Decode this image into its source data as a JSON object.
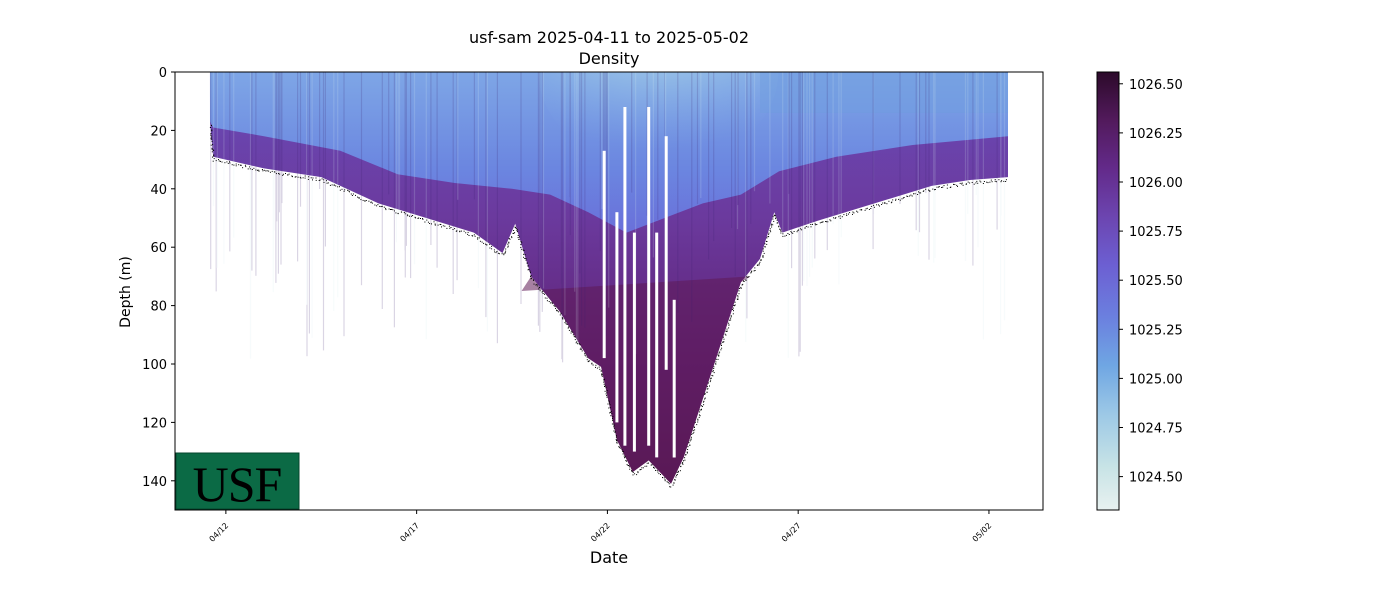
{
  "chart_data": {
    "type": "heatmap",
    "title": "usf-sam 2025-04-11 to 2025-05-02",
    "subtitle": "Density",
    "xlabel": "Date",
    "ylabel": "Depth (m)",
    "x_range": [
      "2025-04-10T16:00",
      "2025-05-03T10:00"
    ],
    "ylim": [
      150,
      0
    ],
    "x_ticks": [
      {
        "date": "2025-04-12",
        "label": "04/12"
      },
      {
        "date": "2025-04-17",
        "label": "04/17"
      },
      {
        "date": "2025-04-22",
        "label": "04/22"
      },
      {
        "date": "2025-04-27",
        "label": "04/27"
      },
      {
        "date": "2025-05-02",
        "label": "05/02"
      }
    ],
    "y_ticks": [
      0,
      20,
      40,
      60,
      80,
      100,
      120,
      140
    ],
    "colorbar": {
      "range": [
        1024.33,
        1026.56
      ],
      "ticks": [
        "1024.50",
        "1024.75",
        "1025.00",
        "1025.25",
        "1025.50",
        "1025.75",
        "1026.00",
        "1026.25",
        "1026.50"
      ]
    },
    "profile_depth": [
      {
        "date": "2025-04-11T14:00",
        "depth": 17
      },
      {
        "date": "2025-04-11T16:00",
        "depth": 29
      },
      {
        "date": "2025-04-13T00:00",
        "depth": 33
      },
      {
        "date": "2025-04-14T12:00",
        "depth": 36
      },
      {
        "date": "2025-04-16T00:00",
        "depth": 45
      },
      {
        "date": "2025-04-17T12:00",
        "depth": 51
      },
      {
        "date": "2025-04-18T12:00",
        "depth": 55
      },
      {
        "date": "2025-04-19T06:00",
        "depth": 62
      },
      {
        "date": "2025-04-19T14:00",
        "depth": 52
      },
      {
        "date": "2025-04-20T00:00",
        "depth": 70
      },
      {
        "date": "2025-04-20T18:00",
        "depth": 82
      },
      {
        "date": "2025-04-21T12:00",
        "depth": 98
      },
      {
        "date": "2025-04-21T20:00",
        "depth": 101
      },
      {
        "date": "2025-04-22T06:00",
        "depth": 126
      },
      {
        "date": "2025-04-22T16:00",
        "depth": 137
      },
      {
        "date": "2025-04-23T02:00",
        "depth": 133
      },
      {
        "date": "2025-04-23T16:00",
        "depth": 141
      },
      {
        "date": "2025-04-24T00:00",
        "depth": 132
      },
      {
        "date": "2025-04-24T12:00",
        "depth": 112
      },
      {
        "date": "2025-04-25T00:00",
        "depth": 92
      },
      {
        "date": "2025-04-25T12:00",
        "depth": 72
      },
      {
        "date": "2025-04-26T00:00",
        "depth": 64
      },
      {
        "date": "2025-04-26T09:00",
        "depth": 48
      },
      {
        "date": "2025-04-26T14:00",
        "depth": 55
      },
      {
        "date": "2025-04-27T12:00",
        "depth": 51
      },
      {
        "date": "2025-04-29T00:00",
        "depth": 45
      },
      {
        "date": "2025-04-30T12:00",
        "depth": 39
      },
      {
        "date": "2025-05-01T12:00",
        "depth": 37
      },
      {
        "date": "2025-05-02T12:00",
        "depth": 36
      }
    ],
    "mixed_layer_depth": [
      {
        "date": "2025-04-11T14:00",
        "depth": 17
      },
      {
        "date": "2025-04-11T16:00",
        "depth": 19
      },
      {
        "date": "2025-04-13T00:00",
        "depth": 22
      },
      {
        "date": "2025-04-15T00:00",
        "depth": 27
      },
      {
        "date": "2025-04-16T12:00",
        "depth": 35
      },
      {
        "date": "2025-04-18T00:00",
        "depth": 38
      },
      {
        "date": "2025-04-19T12:00",
        "depth": 40
      },
      {
        "date": "2025-04-20T12:00",
        "depth": 42
      },
      {
        "date": "2025-04-21T12:00",
        "depth": 48
      },
      {
        "date": "2025-04-22T12:00",
        "depth": 55
      },
      {
        "date": "2025-04-23T12:00",
        "depth": 50
      },
      {
        "date": "2025-04-24T12:00",
        "depth": 45
      },
      {
        "date": "2025-04-25T12:00",
        "depth": 42
      },
      {
        "date": "2025-04-26T12:00",
        "depth": 34
      },
      {
        "date": "2025-04-28T00:00",
        "depth": 29
      },
      {
        "date": "2025-04-30T00:00",
        "depth": 25
      },
      {
        "date": "2025-05-02T12:00",
        "depth": 22
      }
    ],
    "gaps": [
      {
        "date": "2025-04-21T22:00",
        "from_depth": 27,
        "to_depth": 98
      },
      {
        "date": "2025-04-22T06:00",
        "from_depth": 48,
        "to_depth": 120
      },
      {
        "date": "2025-04-22T11:00",
        "from_depth": 12,
        "to_depth": 128
      },
      {
        "date": "2025-04-22T17:00",
        "from_depth": 55,
        "to_depth": 130
      },
      {
        "date": "2025-04-23T02:00",
        "from_depth": 12,
        "to_depth": 128
      },
      {
        "date": "2025-04-23T07:00",
        "from_depth": 55,
        "to_depth": 132
      },
      {
        "date": "2025-04-23T13:00",
        "from_depth": 22,
        "to_depth": 102
      },
      {
        "date": "2025-04-23T18:00",
        "from_depth": 78,
        "to_depth": 132
      }
    ],
    "colors": {
      "surface_light": "#cfe7ea",
      "surface_blue": "#6f9ee0",
      "mid_blue": "#6a74dc",
      "purple": "#6d3ea8",
      "deep": "#5e1a55",
      "bottom_dots": "#000000"
    }
  },
  "logo": {
    "text": "USF",
    "bg": "#0b6a45",
    "fg": "#f3e9b4"
  }
}
